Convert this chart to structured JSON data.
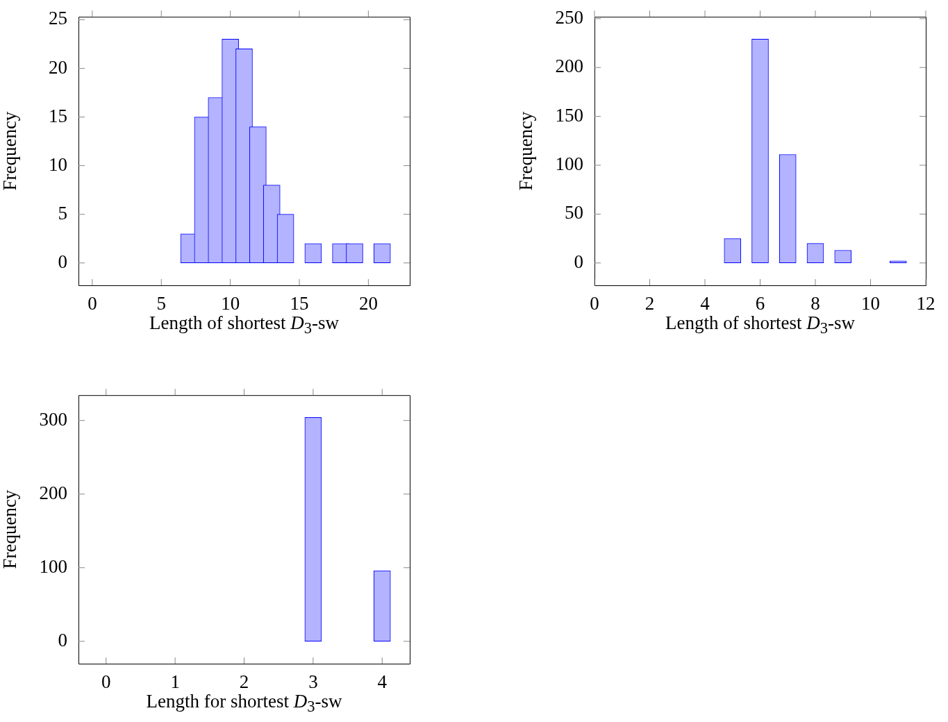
{
  "chart_data": [
    {
      "type": "bar",
      "xlabel": "Length of shortest D$_{3}$-sw",
      "ylabel": "Frequency",
      "x": [
        1,
        2,
        3,
        4,
        5,
        6,
        7,
        8,
        9,
        10,
        11,
        12,
        13,
        14,
        15,
        16,
        17,
        18,
        19,
        20,
        21
      ],
      "color": "#b3b3ff",
      "values": [
        0,
        0,
        0,
        0,
        0,
        0,
        3,
        15,
        17,
        23,
        22,
        14,
        8,
        5,
        0,
        2,
        0,
        2,
        2,
        0,
        2
      ],
      "xlim": [
        -1,
        23
      ],
      "xticks": [
        0,
        5,
        10,
        15,
        20
      ],
      "ylim": [
        -2.3,
        25.3
      ],
      "yticks": [
        0,
        5,
        10,
        15,
        20,
        25
      ]
    },
    {
      "type": "bar",
      "xlabel": "Length of shortest D$_{3}$-sw",
      "ylabel": "Frequency",
      "x": [
        1,
        2,
        3,
        4,
        5,
        6,
        7,
        8,
        9,
        10,
        11
      ],
      "color": "#b3b3ff",
      "values": [
        0,
        0,
        0,
        0,
        25,
        229,
        111,
        20,
        13,
        0,
        2
      ],
      "xlim": [
        0,
        12
      ],
      "xticks": [
        0,
        2,
        4,
        6,
        8,
        10,
        12
      ],
      "ylim": [
        -22.9,
        251.9
      ],
      "yticks": [
        0,
        50,
        100,
        150,
        200,
        250
      ]
    },
    {
      "type": "bar",
      "xlabel": "Length for shortest D$_{3}$-sw",
      "ylabel": "Frequency",
      "x": [
        0,
        1,
        2,
        3,
        4
      ],
      "color": "#b3b3ff",
      "values": [
        0,
        0,
        0,
        304,
        96
      ],
      "xlim": [
        -0.4,
        4.4
      ],
      "xticks": [
        0,
        1,
        2,
        3,
        4
      ],
      "ylim": [
        -30.4,
        334.4
      ],
      "yticks": [
        0,
        100,
        200,
        300
      ]
    }
  ]
}
